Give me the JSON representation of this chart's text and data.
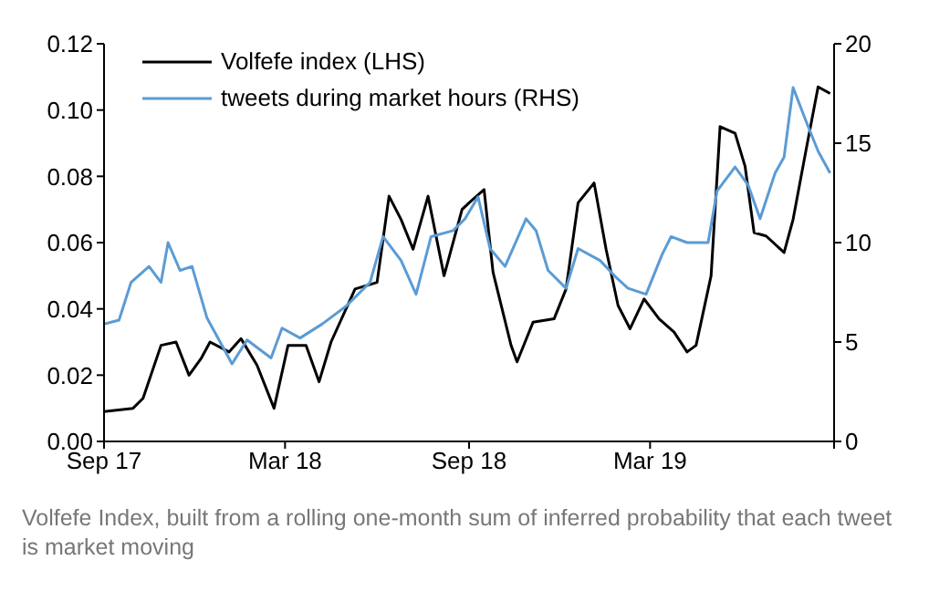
{
  "chart_data": {
    "type": "line",
    "xlim": [
      "2017-09-01",
      "2019-09-01"
    ],
    "xticks": [
      {
        "value": "2017-09-01",
        "label": "Sep 17"
      },
      {
        "value": "2018-03-01",
        "label": "Mar 18"
      },
      {
        "value": "2018-09-01",
        "label": "Sep 18"
      },
      {
        "value": "2019-03-01",
        "label": "Mar 19"
      },
      {
        "value": "2019-09-01",
        "label": null
      }
    ],
    "ylim": [
      0,
      0.12
    ],
    "yticks": [
      {
        "value": 0,
        "label": "0.00"
      },
      {
        "value": 0.02,
        "label": "0.02"
      },
      {
        "value": 0.04,
        "label": "0.04"
      },
      {
        "value": 0.06,
        "label": "0.06"
      },
      {
        "value": 0.08,
        "label": "0.08"
      },
      {
        "value": 0.1,
        "label": "0.10"
      },
      {
        "value": 0.12,
        "label": "0.12"
      }
    ],
    "y2lim": [
      0,
      20
    ],
    "y2ticks": [
      0,
      5,
      10,
      15,
      20
    ],
    "grid": false,
    "legend": "top left",
    "marker": "none",
    "line_style": "solid",
    "annotations": [
      "Volfefe Index, built from a rolling one-month sum of inferred probability that each tweet is market moving"
    ],
    "series": [
      {
        "name": "Volfefe index (LHS)",
        "color": "#000000",
        "x": [
          "2017-09-01",
          "2017-09-30",
          "2017-10-10",
          "2017-10-28",
          "2017-11-12",
          "2017-11-25",
          "2017-12-07",
          "2017-12-16",
          "2018-01-04",
          "2018-01-16",
          "2018-02-01",
          "2018-02-18",
          "2018-03-04",
          "2018-03-22",
          "2018-04-04",
          "2018-04-16",
          "2018-05-10",
          "2018-06-01",
          "2018-06-13",
          "2018-06-25",
          "2018-07-07",
          "2018-07-22",
          "2018-08-07",
          "2018-08-25",
          "2018-09-01",
          "2018-09-16",
          "2018-09-25",
          "2018-10-13",
          "2018-10-19",
          "2018-11-04",
          "2018-11-25",
          "2018-12-07",
          "2018-12-19",
          "2019-01-04",
          "2019-01-16",
          "2019-01-28",
          "2019-02-09",
          "2019-02-23",
          "2019-03-10",
          "2019-03-25",
          "2019-04-07",
          "2019-04-16",
          "2019-05-01",
          "2019-05-10",
          "2019-05-25",
          "2019-06-04",
          "2019-06-13",
          "2019-06-25",
          "2019-07-13",
          "2019-07-22",
          "2019-08-04",
          "2019-08-16",
          "2019-08-28"
        ],
        "values": [
          0.009,
          0.01,
          0.013,
          0.029,
          0.03,
          0.02,
          0.025,
          0.03,
          0.027,
          0.031,
          0.023,
          0.01,
          0.029,
          0.029,
          0.018,
          0.03,
          0.046,
          0.048,
          0.074,
          0.067,
          0.058,
          0.074,
          0.05,
          0.07,
          0.072,
          0.076,
          0.051,
          0.029,
          0.024,
          0.036,
          0.037,
          0.046,
          0.072,
          0.078,
          0.058,
          0.041,
          0.034,
          0.043,
          0.037,
          0.033,
          0.027,
          0.029,
          0.05,
          0.095,
          0.093,
          0.083,
          0.063,
          0.062,
          0.057,
          0.067,
          0.088,
          0.107,
          0.105
        ]
      },
      {
        "name": "tweets during market hours (RHS)",
        "color": "#5b9bd5",
        "axis": "y2",
        "x": [
          "2017-09-01",
          "2017-09-16",
          "2017-09-28",
          "2017-10-16",
          "2017-10-28",
          "2017-11-04",
          "2017-11-16",
          "2017-11-28",
          "2017-12-13",
          "2017-12-25",
          "2018-01-07",
          "2018-01-22",
          "2018-02-15",
          "2018-02-26",
          "2018-03-16",
          "2018-04-07",
          "2018-05-01",
          "2018-05-25",
          "2018-06-07",
          "2018-06-25",
          "2018-07-10",
          "2018-07-25",
          "2018-08-16",
          "2018-08-28",
          "2018-09-10",
          "2018-09-22",
          "2018-10-07",
          "2018-10-28",
          "2018-11-07",
          "2018-11-19",
          "2018-12-07",
          "2018-12-19",
          "2019-01-10",
          "2019-01-25",
          "2019-02-07",
          "2019-02-25",
          "2019-03-13",
          "2019-03-22",
          "2019-04-07",
          "2019-04-28",
          "2019-05-07",
          "2019-05-25",
          "2019-06-07",
          "2019-06-19",
          "2019-07-04",
          "2019-07-13",
          "2019-07-22",
          "2019-08-04",
          "2019-08-16",
          "2019-08-28"
        ],
        "values": [
          5.9,
          6.1,
          8.0,
          8.8,
          8.0,
          10.0,
          8.6,
          8.8,
          6.2,
          5.1,
          3.9,
          5.1,
          4.2,
          5.7,
          5.2,
          5.9,
          6.8,
          8.0,
          10.3,
          9.1,
          7.4,
          10.3,
          10.6,
          11.2,
          12.3,
          9.7,
          8.8,
          11.2,
          10.6,
          8.6,
          7.7,
          9.7,
          9.1,
          8.3,
          7.7,
          7.4,
          9.4,
          10.3,
          10.0,
          10.0,
          12.6,
          13.8,
          12.9,
          11.2,
          13.5,
          14.3,
          17.8,
          16.1,
          14.6,
          13.5
        ]
      }
    ]
  }
}
